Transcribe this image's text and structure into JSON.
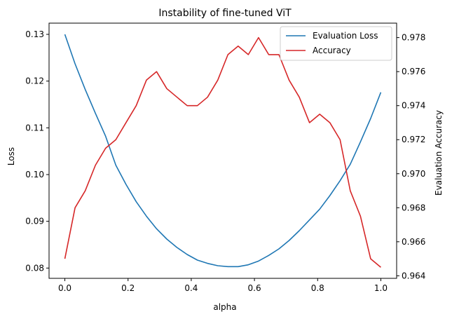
{
  "chart_data": {
    "type": "line",
    "title": "Instability of fine-tuned ViT",
    "xlabel": "alpha",
    "ylabel_left": "Loss",
    "ylabel_right": "Evaluation Accuracy",
    "xlim": [
      -0.05,
      1.05
    ],
    "ylim_left": [
      0.0778,
      0.1324
    ],
    "ylim_right": [
      0.96385,
      0.97885
    ],
    "x_ticks": [
      0.0,
      0.2,
      0.4,
      0.6,
      0.8,
      1.0
    ],
    "x_tick_labels": [
      "0.0",
      "0.2",
      "0.4",
      "0.6",
      "0.8",
      "1.0"
    ],
    "y_left_ticks": [
      0.08,
      0.09,
      0.1,
      0.11,
      0.12,
      0.13
    ],
    "y_left_tick_labels": [
      "0.08",
      "0.09",
      "0.10",
      "0.11",
      "0.12",
      "0.13"
    ],
    "y_right_ticks": [
      0.964,
      0.966,
      0.968,
      0.97,
      0.972,
      0.974,
      0.976,
      0.978
    ],
    "y_right_tick_labels": [
      "0.964",
      "0.966",
      "0.968",
      "0.970",
      "0.972",
      "0.974",
      "0.976",
      "0.978"
    ],
    "legend_position": "top-right",
    "grid": false,
    "x": [
      0.0,
      0.0323,
      0.0645,
      0.0968,
      0.129,
      0.1613,
      0.1935,
      0.2258,
      0.2581,
      0.2903,
      0.3226,
      0.3548,
      0.3871,
      0.4194,
      0.4516,
      0.4839,
      0.5161,
      0.5484,
      0.5806,
      0.6129,
      0.6452,
      0.6774,
      0.7097,
      0.7419,
      0.7742,
      0.8065,
      0.8387,
      0.871,
      0.9032,
      0.9355,
      0.9677,
      1.0
    ],
    "series": [
      {
        "name": "Evaluation Loss",
        "axis": "left",
        "color": "#1f77b4",
        "values": [
          0.13,
          0.1237,
          0.1182,
          0.1131,
          0.1082,
          0.102,
          0.0979,
          0.0942,
          0.0911,
          0.0884,
          0.0862,
          0.0844,
          0.0829,
          0.0817,
          0.081,
          0.0805,
          0.0803,
          0.0803,
          0.0807,
          0.0815,
          0.0827,
          0.0841,
          0.0859,
          0.088,
          0.0903,
          0.0926,
          0.0955,
          0.0987,
          0.1022,
          0.107,
          0.112,
          0.1176
        ]
      },
      {
        "name": "Accuracy",
        "axis": "right",
        "color": "#d62728",
        "values": [
          0.965,
          0.968,
          0.969,
          0.9705,
          0.9715,
          0.972,
          0.973,
          0.974,
          0.9755,
          0.976,
          0.975,
          0.9745,
          0.974,
          0.974,
          0.9745,
          0.9755,
          0.977,
          0.9775,
          0.977,
          0.978,
          0.977,
          0.977,
          0.9755,
          0.9745,
          0.973,
          0.9735,
          0.973,
          0.972,
          0.969,
          0.9675,
          0.965,
          0.9645
        ]
      }
    ]
  }
}
